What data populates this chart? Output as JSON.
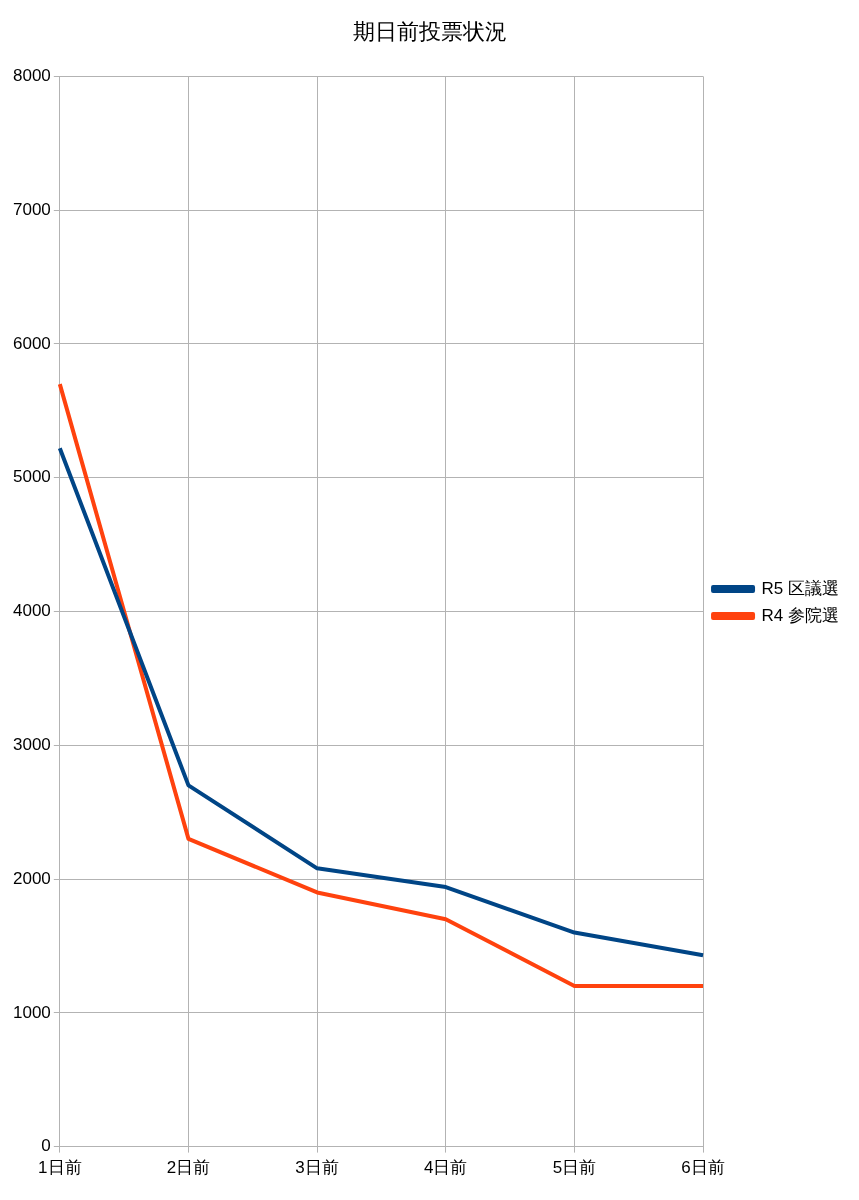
{
  "chart_data": {
    "type": "line",
    "title": "期日前投票状況",
    "categories": [
      "1日前",
      "2日前",
      "3日前",
      "4日前",
      "5日前",
      "6日前"
    ],
    "series": [
      {
        "name": "R5 区議選",
        "color": "#004586",
        "values": [
          5220,
          2700,
          2080,
          1940,
          1600,
          1430
        ]
      },
      {
        "name": "R4 参院選",
        "color": "#ff420e",
        "values": [
          5700,
          2300,
          1900,
          1700,
          1200,
          1200
        ]
      }
    ],
    "ylim": [
      0,
      8000
    ],
    "yticks": [
      0,
      1000,
      2000,
      3000,
      4000,
      5000,
      6000,
      7000,
      8000
    ],
    "grid": true,
    "legend": "right",
    "marker": "none",
    "line_style": "solid"
  }
}
